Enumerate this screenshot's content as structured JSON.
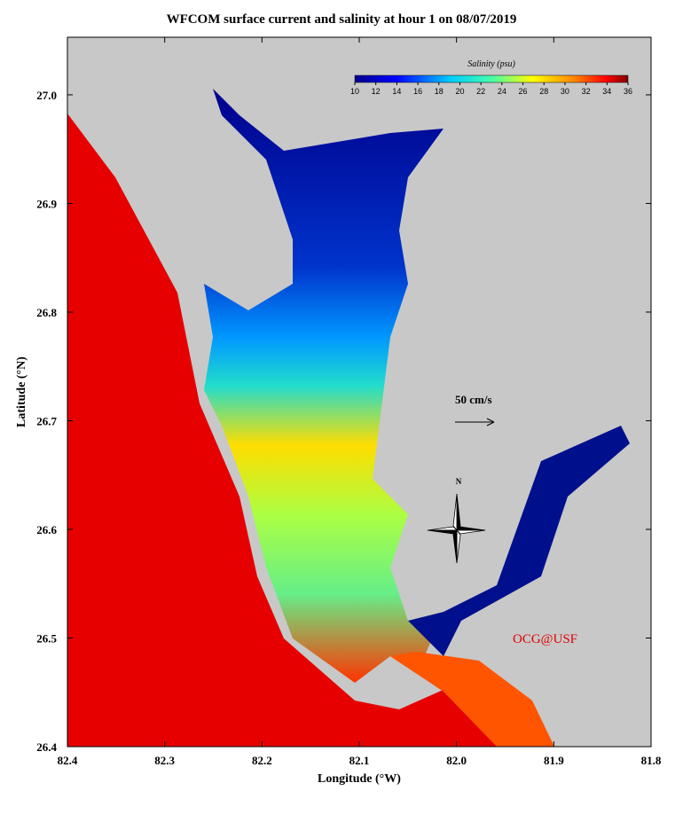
{
  "chart_data": {
    "type": "map",
    "title": "WFCOM surface current and salinity at hour 1 on 08/07/2019",
    "xlabel": "Longitude (°W)",
    "ylabel": "Latitude (°N)",
    "xlim": [
      -82.4,
      -81.8
    ],
    "ylim": [
      26.4,
      27.053
    ],
    "xticks": [
      {
        "value": -82.4,
        "label": "82.4"
      },
      {
        "value": -82.3,
        "label": "82.3"
      },
      {
        "value": -82.2,
        "label": "82.2"
      },
      {
        "value": -82.1,
        "label": "82.1"
      },
      {
        "value": -82.0,
        "label": "82.0"
      },
      {
        "value": -81.9,
        "label": "81.9"
      },
      {
        "value": -81.8,
        "label": "81.8"
      }
    ],
    "yticks": [
      {
        "value": 26.4,
        "label": "26.4"
      },
      {
        "value": 26.5,
        "label": "26.5"
      },
      26.6,
      26.7,
      26.8,
      26.9,
      {
        "value": 27.0,
        "label": "27.0"
      }
    ],
    "colorbar": {
      "label": "Salinity (psu)",
      "range": [
        10,
        36
      ],
      "ticks": [
        10,
        12,
        14,
        16,
        18,
        20,
        22,
        24,
        26,
        28,
        30,
        32,
        34,
        36
      ]
    },
    "annotations": {
      "scale": "50 cm/s",
      "north": "N",
      "credit": "OCG@USF"
    }
  }
}
